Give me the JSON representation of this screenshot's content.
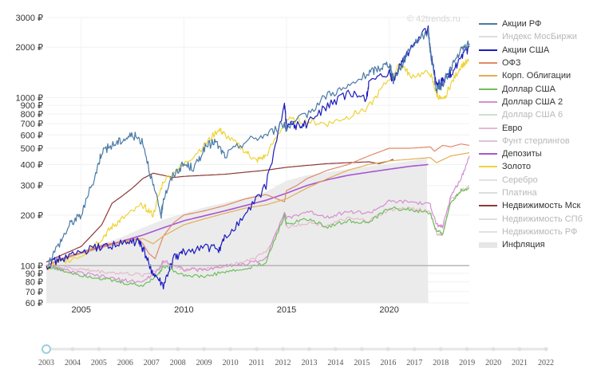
{
  "watermark": "© 42trends.ru",
  "legend": [
    {
      "label": "Акции РФ",
      "color": "#4a7aa6",
      "muted": false
    },
    {
      "label": "Индекс МосБиржи",
      "color": "#dedede",
      "muted": true
    },
    {
      "label": "Акции США",
      "color": "#1c1cbf",
      "muted": false
    },
    {
      "label": "ОФЗ",
      "color": "#e08a68",
      "muted": false
    },
    {
      "label": "Корп. Облигации",
      "color": "#e3ae55",
      "muted": false
    },
    {
      "label": "Доллар США",
      "color": "#6fbf5e",
      "muted": false
    },
    {
      "label": "Доллар США 2",
      "color": "#d490d0",
      "muted": false
    },
    {
      "label": "Доллар США 6",
      "color": "#cfe0c8",
      "muted": true
    },
    {
      "label": "Евро",
      "color": "#e8b9cc",
      "muted": false
    },
    {
      "label": "Фунт стерлингов",
      "color": "#dcc3dc",
      "muted": true
    },
    {
      "label": "Депозиты",
      "color": "#a855d3",
      "muted": false
    },
    {
      "label": "Золото",
      "color": "#eed43a",
      "muted": false
    },
    {
      "label": "Серебро",
      "color": "#e2e2e2",
      "muted": true
    },
    {
      "label": "Платина",
      "color": "#dcdcdc",
      "muted": true
    },
    {
      "label": "Недвижимость Мск",
      "color": "#8b3a36",
      "muted": false
    },
    {
      "label": "Недвижимость СПб",
      "color": "#dedede",
      "muted": true
    },
    {
      "label": "Недвижимость РФ",
      "color": "#e2e2e2",
      "muted": true
    },
    {
      "label": "Инфляция",
      "color": "#e6e6e6",
      "muted": false,
      "band": true
    }
  ],
  "slider": {
    "years": [
      "2003",
      "2004",
      "2005",
      "2006",
      "2007",
      "2008",
      "2009",
      "2010",
      "2011",
      "2012",
      "2013",
      "2014",
      "2015",
      "2016",
      "2017",
      "2018",
      "2019",
      "2020",
      "2021",
      "2022"
    ],
    "selected": "2003"
  },
  "chart_data": {
    "type": "line",
    "y_scale": "log",
    "ylim": [
      60,
      3000
    ],
    "xlim": [
      2003.3,
      2023.9
    ],
    "y_ticks": [
      "60 ₽",
      "70 ₽",
      "80 ₽",
      "90 ₽",
      "100 ₽",
      "200 ₽",
      "300 ₽",
      "400 ₽",
      "500 ₽",
      "600 ₽",
      "700 ₽",
      "800 ₽",
      "900 ₽",
      "1000 ₽",
      "2000 ₽",
      "3000 ₽"
    ],
    "y_tick_values": [
      60,
      70,
      80,
      90,
      100,
      200,
      300,
      400,
      500,
      600,
      700,
      800,
      900,
      1000,
      2000,
      3000
    ],
    "x_ticks": [
      "2005",
      "2010",
      "2015",
      "2020"
    ],
    "x_tick_values": [
      2005,
      2010,
      2015,
      2020
    ],
    "baseline": 100,
    "series": [
      {
        "name": "Инфляция",
        "color": "#e0e0e0",
        "kind": "area",
        "x": [
          2003.3,
          2004,
          2005,
          2006,
          2007,
          2008,
          2009,
          2010,
          2011,
          2012,
          2013,
          2014,
          2015,
          2016,
          2017,
          2018,
          2019,
          2020,
          2021,
          2022,
          2022.9,
          2023.9
        ],
        "y": [
          100,
          110,
          123,
          135,
          148,
          168,
          188,
          205,
          222,
          237,
          253,
          275,
          320,
          345,
          360,
          375,
          390,
          405,
          420,
          440,
          460,
          475
        ]
      },
      {
        "name": "Недвижимость Мск",
        "color": "#8b3a36",
        "x": [
          2003.3,
          2004,
          2005,
          2006,
          2006.5,
          2007,
          2007.5,
          2008,
          2008.5,
          2009,
          2009.5,
          2010,
          2011,
          2012,
          2013,
          2014,
          2015,
          2016,
          2017,
          2018,
          2019,
          2019.5,
          2020,
          2020.2
        ],
        "y": [
          105,
          115,
          130,
          175,
          235,
          260,
          290,
          330,
          355,
          345,
          335,
          340,
          345,
          350,
          360,
          370,
          385,
          395,
          405,
          410,
          415,
          405,
          420,
          430
        ]
      },
      {
        "name": "Депозиты",
        "color": "#a855d3",
        "x": [
          2003.3,
          2004,
          2005,
          2006,
          2007,
          2008,
          2009,
          2010,
          2011,
          2012,
          2013,
          2014,
          2015,
          2016,
          2017,
          2018,
          2019,
          2020,
          2021,
          2021.9
        ],
        "y": [
          100,
          108,
          119,
          130,
          140,
          152,
          168,
          185,
          198,
          212,
          228,
          245,
          270,
          300,
          325,
          345,
          360,
          375,
          390,
          400
        ]
      },
      {
        "name": "ОФЗ",
        "color": "#e08a68",
        "x": [
          2003.3,
          2004,
          2005,
          2006,
          2007,
          2007.8,
          2008,
          2008.3,
          2008.6,
          2009,
          2009.5,
          2010,
          2011,
          2012,
          2013,
          2014,
          2014.9,
          2015,
          2015.5,
          2016,
          2017,
          2018,
          2019,
          2020,
          2021,
          2022,
          2022.2,
          2022.6,
          2023,
          2023.5,
          2023.9
        ],
        "y": [
          100,
          110,
          120,
          132,
          140,
          145,
          135,
          118,
          110,
          150,
          180,
          200,
          212,
          228,
          250,
          265,
          240,
          280,
          300,
          330,
          370,
          400,
          450,
          500,
          500,
          510,
          480,
          520,
          510,
          530,
          520
        ]
      },
      {
        "name": "Корп. Облигации",
        "color": "#e3ae55",
        "x": [
          2003.3,
          2004,
          2005,
          2006,
          2007,
          2008,
          2008.5,
          2009,
          2010,
          2011,
          2012,
          2013,
          2014,
          2015,
          2016,
          2017,
          2018,
          2019,
          2020,
          2021,
          2022,
          2022.3,
          2023,
          2023.9
        ],
        "y": [
          100,
          108,
          118,
          128,
          137,
          145,
          135,
          150,
          175,
          190,
          205,
          220,
          230,
          250,
          290,
          330,
          370,
          400,
          420,
          430,
          440,
          410,
          450,
          470
        ]
      },
      {
        "name": "Евро",
        "color": "#e8b9cc",
        "x": [
          2003.3,
          2004,
          2005,
          2006,
          2007,
          2008,
          2008.8,
          2009,
          2010,
          2011,
          2012,
          2013,
          2014,
          2014.9,
          2015,
          2016,
          2017,
          2018,
          2019,
          2020,
          2021,
          2022,
          2022.3,
          2022.6,
          2023,
          2023.9
        ],
        "y": [
          100,
          98,
          95,
          92,
          90,
          88,
          95,
          105,
          95,
          96,
          100,
          105,
          120,
          195,
          170,
          180,
          175,
          190,
          185,
          215,
          220,
          210,
          155,
          150,
          250,
          300
        ]
      },
      {
        "name": "Доллар США 2",
        "color": "#d490d0",
        "x": [
          2003.3,
          2004,
          2005,
          2006,
          2007,
          2008,
          2008.8,
          2009,
          2010,
          2011,
          2012,
          2013,
          2014,
          2014.9,
          2015,
          2016,
          2017,
          2018,
          2019,
          2020,
          2021,
          2022,
          2022.3,
          2022.6,
          2023,
          2023.5,
          2023.9
        ],
        "y": [
          100,
          95,
          90,
          86,
          82,
          80,
          95,
          108,
          95,
          94,
          100,
          102,
          110,
          210,
          190,
          210,
          195,
          210,
          205,
          240,
          240,
          230,
          175,
          170,
          260,
          330,
          450
        ]
      },
      {
        "name": "Доллар США",
        "color": "#6fbf5e",
        "x": [
          2003.3,
          2004,
          2005,
          2006,
          2007,
          2008,
          2008.8,
          2009,
          2010,
          2011,
          2012,
          2013,
          2014,
          2014.9,
          2015,
          2016,
          2017,
          2018,
          2019,
          2020,
          2021,
          2022,
          2022.3,
          2022.6,
          2023,
          2023.5,
          2023.9
        ],
        "y": [
          100,
          94,
          88,
          84,
          79,
          76,
          90,
          100,
          88,
          86,
          92,
          95,
          105,
          200,
          175,
          190,
          170,
          185,
          180,
          220,
          215,
          205,
          160,
          155,
          240,
          280,
          290
        ]
      },
      {
        "name": "Золото",
        "color": "#eed43a",
        "x": [
          2003.3,
          2004,
          2005,
          2006,
          2006.5,
          2007,
          2008,
          2008.5,
          2009,
          2010,
          2011,
          2011.7,
          2012,
          2013,
          2013.5,
          2014,
          2015,
          2016,
          2017,
          2018,
          2019,
          2020,
          2020.6,
          2021,
          2022,
          2022.3,
          2022.6,
          2023,
          2023.5,
          2023.9
        ],
        "y": [
          95,
          105,
          115,
          145,
          170,
          190,
          230,
          200,
          320,
          400,
          520,
          650,
          600,
          480,
          420,
          450,
          740,
          720,
          700,
          770,
          880,
          1300,
          1600,
          1350,
          1400,
          1050,
          950,
          1200,
          1550,
          1650
        ]
      },
      {
        "name": "Акции США",
        "color": "#1c1cbf",
        "x": [
          2003.3,
          2004,
          2005,
          2006,
          2007,
          2007.8,
          2008,
          2008.5,
          2009,
          2009.5,
          2010,
          2011,
          2011.7,
          2012,
          2013,
          2014,
          2014.9,
          2015,
          2015.5,
          2016,
          2017,
          2018,
          2018.9,
          2019,
          2020,
          2020.2,
          2020.6,
          2021,
          2021.9,
          2022,
          2022.3,
          2022.6,
          2023,
          2023.5,
          2023.9
        ],
        "y": [
          100,
          110,
          120,
          130,
          135,
          140,
          125,
          90,
          75,
          110,
          120,
          130,
          125,
          145,
          200,
          300,
          900,
          700,
          680,
          700,
          900,
          1050,
          1000,
          1200,
          1400,
          1250,
          1650,
          1900,
          2600,
          1900,
          1200,
          1250,
          1400,
          1700,
          2000
        ]
      },
      {
        "name": "Акции РФ",
        "color": "#4a7aa6",
        "x": [
          2003.3,
          2004,
          2004.5,
          2005,
          2005.7,
          2006,
          2006.5,
          2007,
          2007.5,
          2008,
          2008.5,
          2008.9,
          2009,
          2009.5,
          2010,
          2010.5,
          2011,
          2011.5,
          2012,
          2013,
          2014,
          2014.9,
          2015,
          2016,
          2017,
          2018,
          2019,
          2019.5,
          2020,
          2020.2,
          2020.6,
          2021,
          2021.9,
          2022,
          2022.3,
          2022.6,
          2023,
          2023.5,
          2023.9
        ],
        "y": [
          100,
          140,
          180,
          200,
          350,
          480,
          520,
          560,
          600,
          550,
          300,
          200,
          250,
          350,
          400,
          380,
          500,
          550,
          450,
          550,
          600,
          700,
          650,
          800,
          1050,
          1150,
          1400,
          1500,
          1600,
          1300,
          1550,
          2000,
          2500,
          1900,
          1100,
          1200,
          1500,
          1900,
          2100
        ]
      }
    ]
  }
}
